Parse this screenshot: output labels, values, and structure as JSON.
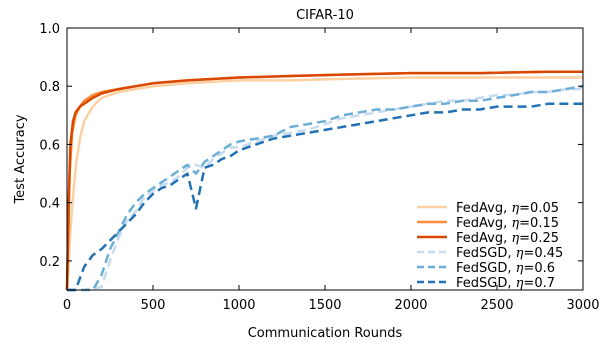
{
  "chart_data": {
    "type": "line",
    "title": "CIFAR-10",
    "xlabel": "Communication Rounds",
    "ylabel": "Test Accuracy",
    "xlim": [
      0,
      3000
    ],
    "ylim": [
      0.1,
      1.0
    ],
    "xticks": [
      0,
      500,
      1000,
      1500,
      2000,
      2500,
      3000
    ],
    "yticks": [
      0.2,
      0.4,
      0.6,
      0.8,
      1.0
    ],
    "xtick_labels": [
      "0",
      "500",
      "1000",
      "1500",
      "2000",
      "2500",
      "3000"
    ],
    "ytick_labels": [
      "0.2",
      "0.4",
      "0.6",
      "0.8",
      "1.0"
    ],
    "grid": false,
    "legend_position": "lower-right",
    "series": [
      {
        "label_method": "FedAvg, ",
        "label_symbol": "η",
        "label_value": "=0.05",
        "color": "#fdd0a2",
        "dash": "solid",
        "x": [
          0,
          25,
          50,
          75,
          100,
          150,
          200,
          300,
          500,
          700,
          1000,
          1300,
          1600,
          2000,
          2400,
          2800,
          3000
        ],
        "y": [
          0.1,
          0.35,
          0.52,
          0.62,
          0.68,
          0.73,
          0.76,
          0.78,
          0.8,
          0.81,
          0.82,
          0.82,
          0.825,
          0.83,
          0.83,
          0.83,
          0.83
        ]
      },
      {
        "label_method": "FedAvg, ",
        "label_symbol": "η",
        "label_value": "=0.15",
        "color": "#fd8d3c",
        "dash": "solid",
        "x": [
          0,
          15,
          30,
          50,
          75,
          100,
          150,
          200,
          300,
          400,
          500,
          700,
          1000,
          1300,
          1600,
          2000,
          2400,
          2800,
          3000
        ],
        "y": [
          0.1,
          0.5,
          0.64,
          0.7,
          0.73,
          0.75,
          0.77,
          0.78,
          0.79,
          0.8,
          0.81,
          0.82,
          0.83,
          0.835,
          0.84,
          0.845,
          0.845,
          0.85,
          0.85
        ]
      },
      {
        "label_method": "FedAvg, ",
        "label_symbol": "η",
        "label_value": "=0.25",
        "color": "#d94801",
        "dash": "solid",
        "x": [
          0,
          10,
          20,
          35,
          50,
          75,
          100,
          150,
          200,
          300,
          400,
          500,
          700,
          1000,
          1300,
          1600,
          2000,
          2400,
          2800,
          3000
        ],
        "y": [
          0.1,
          0.4,
          0.6,
          0.68,
          0.71,
          0.73,
          0.74,
          0.76,
          0.775,
          0.79,
          0.8,
          0.81,
          0.82,
          0.83,
          0.835,
          0.84,
          0.845,
          0.845,
          0.85,
          0.85
        ]
      },
      {
        "label_method": "FedSGD, ",
        "label_symbol": "η",
        "label_value": "=0.45",
        "color": "#c6dbef",
        "dash": "dashed",
        "x": [
          0,
          100,
          200,
          250,
          300,
          350,
          400,
          450,
          500,
          550,
          600,
          650,
          700,
          750,
          800,
          850,
          900,
          950,
          1000,
          1100,
          1200,
          1300,
          1400,
          1500,
          1600,
          1700,
          1800,
          1900,
          2000,
          2100,
          2200,
          2300,
          2400,
          2500,
          2600,
          2700,
          2800,
          2900,
          3000
        ],
        "y": [
          0.1,
          0.1,
          0.11,
          0.2,
          0.28,
          0.34,
          0.37,
          0.42,
          0.44,
          0.46,
          0.47,
          0.49,
          0.52,
          0.53,
          0.52,
          0.55,
          0.57,
          0.59,
          0.59,
          0.61,
          0.63,
          0.64,
          0.65,
          0.67,
          0.69,
          0.7,
          0.71,
          0.72,
          0.73,
          0.74,
          0.75,
          0.75,
          0.76,
          0.77,
          0.77,
          0.78,
          0.78,
          0.79,
          0.79
        ]
      },
      {
        "label_method": "FedSGD, ",
        "label_symbol": "η",
        "label_value": "=0.6",
        "color": "#6baed6",
        "dash": "dashed",
        "x": [
          0,
          150,
          200,
          250,
          300,
          350,
          400,
          450,
          500,
          550,
          600,
          650,
          700,
          750,
          800,
          850,
          900,
          950,
          1000,
          1100,
          1200,
          1300,
          1400,
          1500,
          1600,
          1700,
          1800,
          1900,
          2000,
          2100,
          2200,
          2300,
          2400,
          2500,
          2600,
          2700,
          2800,
          2900,
          3000
        ],
        "y": [
          0.1,
          0.1,
          0.15,
          0.24,
          0.3,
          0.36,
          0.4,
          0.43,
          0.45,
          0.47,
          0.49,
          0.51,
          0.53,
          0.5,
          0.54,
          0.56,
          0.58,
          0.6,
          0.61,
          0.62,
          0.63,
          0.66,
          0.67,
          0.68,
          0.7,
          0.71,
          0.72,
          0.72,
          0.73,
          0.74,
          0.74,
          0.75,
          0.75,
          0.76,
          0.77,
          0.78,
          0.78,
          0.79,
          0.8
        ]
      },
      {
        "label_method": "FedSGD, ",
        "label_symbol": "η",
        "label_value": "=0.7",
        "color": "#2171b5",
        "dash": "dashed",
        "x": [
          0,
          50,
          100,
          150,
          200,
          250,
          300,
          350,
          400,
          450,
          500,
          550,
          600,
          650,
          700,
          750,
          800,
          850,
          900,
          950,
          1000,
          1100,
          1200,
          1300,
          1400,
          1500,
          1600,
          1700,
          1800,
          1900,
          2000,
          2100,
          2200,
          2300,
          2400,
          2500,
          2600,
          2700,
          2800,
          2900,
          3000
        ],
        "y": [
          0.1,
          0.1,
          0.18,
          0.22,
          0.24,
          0.27,
          0.3,
          0.33,
          0.36,
          0.4,
          0.43,
          0.45,
          0.46,
          0.48,
          0.5,
          0.38,
          0.52,
          0.53,
          0.55,
          0.56,
          0.58,
          0.6,
          0.62,
          0.63,
          0.64,
          0.65,
          0.66,
          0.67,
          0.68,
          0.69,
          0.7,
          0.71,
          0.71,
          0.72,
          0.72,
          0.73,
          0.73,
          0.73,
          0.74,
          0.74,
          0.74
        ]
      }
    ]
  }
}
